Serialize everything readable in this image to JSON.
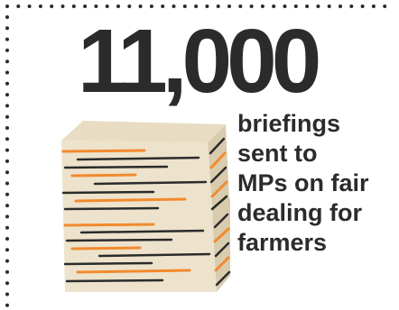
{
  "stat": {
    "number": "11,000",
    "description_lines": [
      "briefings",
      "sent to",
      "MPs on fair",
      "dealing for",
      "farmers"
    ]
  },
  "colors": {
    "text": "#2b2b2b",
    "border_dots": "#2b2b2b",
    "paper": "#ede3cc",
    "paper_edge": "#d9ccae",
    "accent_orange": "#f28a2e",
    "accent_dark": "#2b2b2b"
  },
  "icons": [
    "paper-stack-icon"
  ]
}
